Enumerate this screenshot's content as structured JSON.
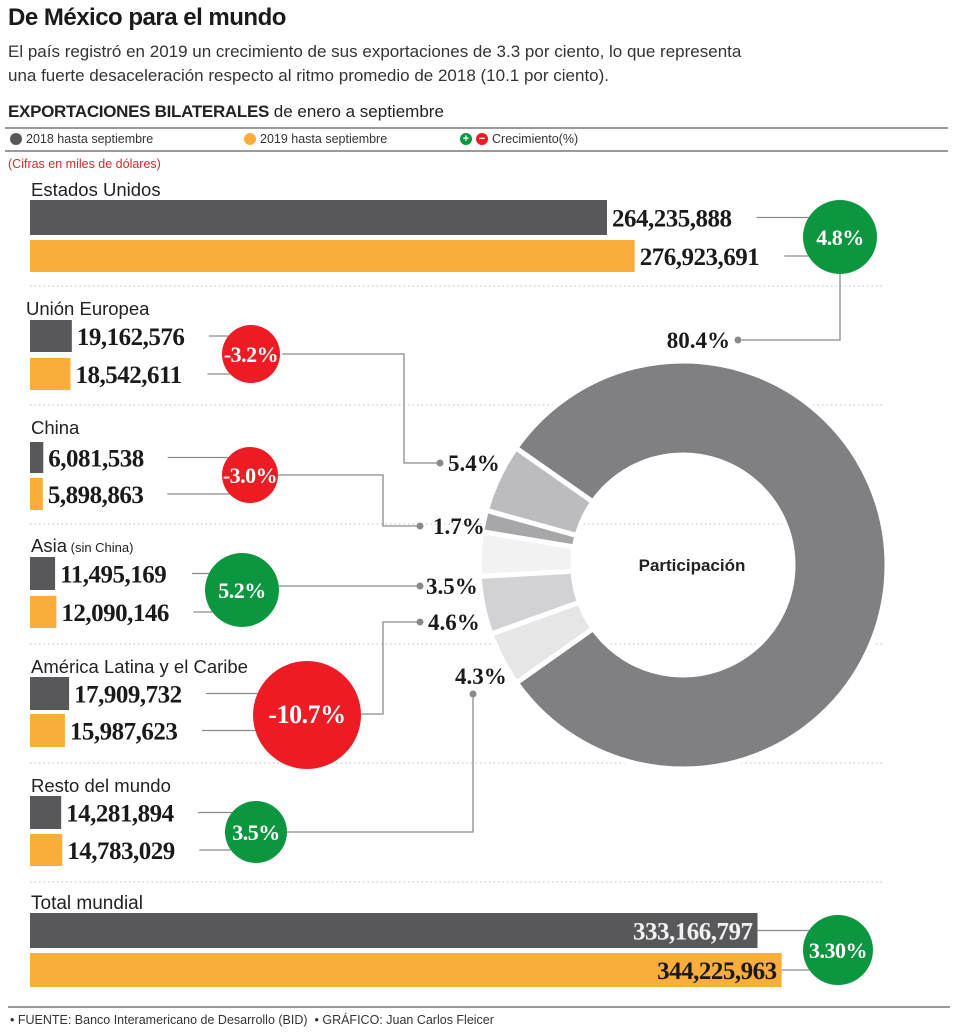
{
  "header": {
    "title": "De México para el mundo",
    "subtitle_line1": "El país registró en 2019 un crecimiento de sus exportaciones de 3.3 por ciento, lo que representa",
    "subtitle_line2": "una fuerte desaceleración respecto al ritmo promedio de 2018 (10.1 por ciento).",
    "section_bold": "EXPORTACIONES BILATERALES",
    "section_rest": " de enero a septiembre"
  },
  "legend": {
    "series_2018": "2018 hasta septiembre",
    "series_2019": "2019 hasta septiembre",
    "plus": "+",
    "minus": "−",
    "growth": "Crecimiento(%)"
  },
  "units_note": "(Cifras en miles de dólares)",
  "footer": {
    "source": "• FUENTE: Banco Interamericano de Desarrollo (BID)",
    "credit": "• GRÁFICO: Juan Carlos Fleicer"
  },
  "colors": {
    "bar_2018": "#58585a",
    "bar_2019": "#f9ae3c",
    "positive": "#0d9640",
    "negative": "#ed1c24",
    "connector": "#8a8a8a"
  },
  "chart_data": [
    {
      "type": "bar",
      "title": "EXPORTACIONES BILATERALES de enero a septiembre",
      "units": "miles de dólares",
      "series_names": [
        "2018 hasta septiembre",
        "2019 hasta septiembre"
      ],
      "categories": [
        {
          "name": "Estados Unidos",
          "note": "",
          "v2018": 264235888,
          "v2019": 276923691,
          "v2018_label": "264,235,888",
          "v2019_label": "276,923,691",
          "growth": 4.8,
          "growth_label": "4.8%"
        },
        {
          "name": "Unión Europea",
          "note": "",
          "v2018": 19162576,
          "v2019": 18542611,
          "v2018_label": "19,162,576",
          "v2019_label": "18,542,611",
          "growth": -3.2,
          "growth_label": "-3.2%"
        },
        {
          "name": "China",
          "note": "",
          "v2018": 6081538,
          "v2019": 5898863,
          "v2018_label": "6,081,538",
          "v2019_label": "5,898,863",
          "growth": -3.0,
          "growth_label": "-3.0%"
        },
        {
          "name": "Asia",
          "note": " (sin China)",
          "v2018": 11495169,
          "v2019": 12090146,
          "v2018_label": "11,495,169",
          "v2019_label": "12,090,146",
          "growth": 5.2,
          "growth_label": "5.2%"
        },
        {
          "name": "América Latina y el Caribe",
          "note": "",
          "v2018": 17909732,
          "v2019": 15987623,
          "v2018_label": "17,909,732",
          "v2019_label": "15,987,623",
          "growth": -10.7,
          "growth_label": "-10.7%"
        },
        {
          "name": "Resto del mundo",
          "note": "",
          "v2018": 14281894,
          "v2019": 14783029,
          "v2018_label": "14,281,894",
          "v2019_label": "14,783,029",
          "growth": 3.5,
          "growth_label": "3.5%"
        },
        {
          "name": "Total mundial",
          "note": "",
          "v2018": 333166797,
          "v2019": 344225963,
          "v2018_label": "333,166,797",
          "v2019_label": "344,225,963",
          "growth": 3.3,
          "growth_label": "3.30%"
        }
      ]
    },
    {
      "type": "pie",
      "title": "Participación",
      "slices": [
        {
          "name": "Estados Unidos",
          "value": 80.4,
          "label": "80.4%",
          "color": "#808083"
        },
        {
          "name": "Resto del mundo",
          "value": 4.3,
          "label": "4.3%",
          "color": "#e6e6e7"
        },
        {
          "name": "América Latina y el Caribe",
          "value": 4.6,
          "label": "4.6%",
          "color": "#d2d2d4"
        },
        {
          "name": "Asia",
          "value": 3.5,
          "label": "3.5%",
          "color": "#f2f2f2"
        },
        {
          "name": "China",
          "value": 1.7,
          "label": "1.7%",
          "color": "#a7a7aa"
        },
        {
          "name": "Unión Europea",
          "value": 5.4,
          "label": "5.4%",
          "color": "#bcbcbf"
        }
      ]
    }
  ]
}
